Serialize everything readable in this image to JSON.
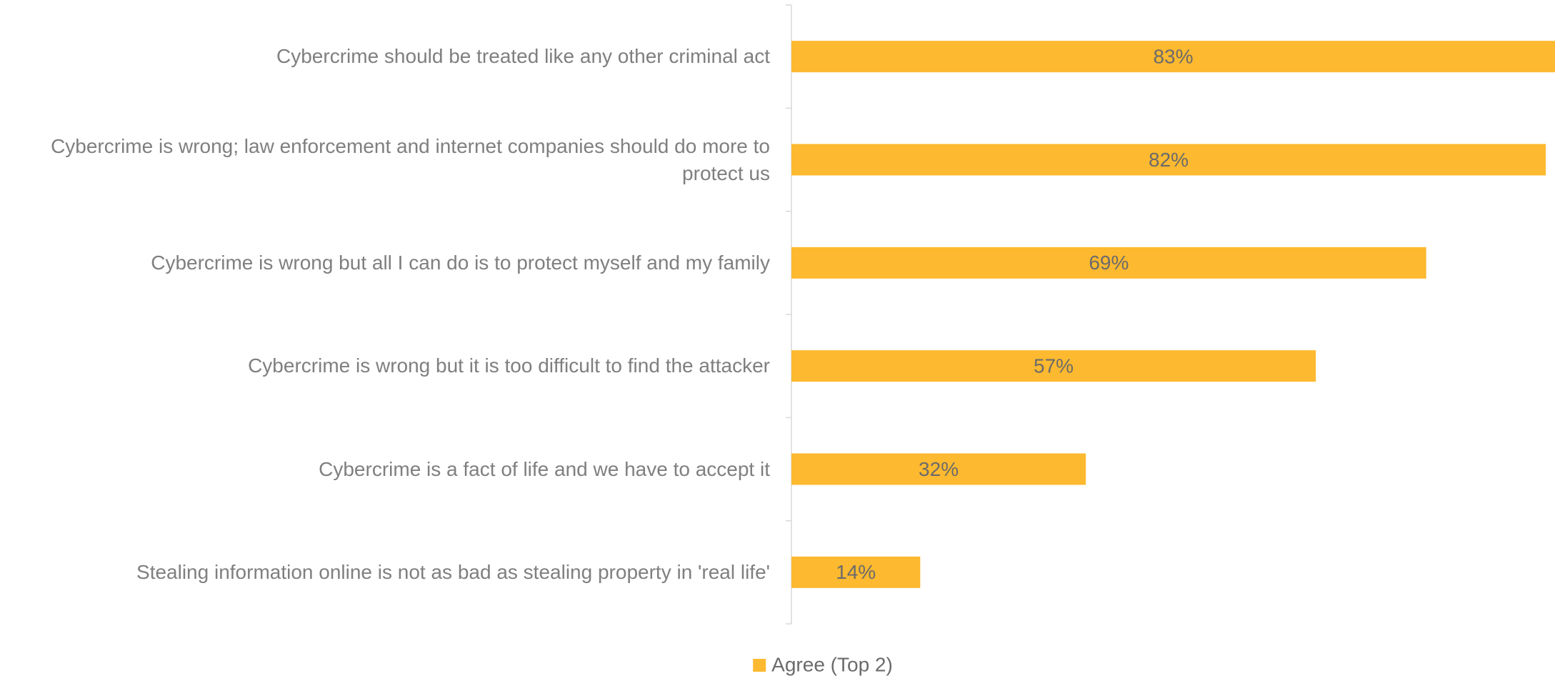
{
  "chart_data": {
    "type": "bar",
    "orientation": "horizontal",
    "categories": [
      "Cybercrime should be treated like any other criminal act",
      "Cybercrime is wrong; law enforcement and internet companies should do more to protect us",
      "Cybercrime is wrong but all I can do is to protect myself and my family",
      "Cybercrime is wrong but it is too difficult to find the attacker",
      "Cybercrime is a fact of life and we have to accept it",
      "Stealing information online is not as bad as stealing property in 'real life'"
    ],
    "series": [
      {
        "name": "Agree (Top 2)",
        "color": "#fdb92f",
        "values": [
          83,
          82,
          69,
          57,
          32,
          14
        ],
        "value_labels": [
          "83%",
          "82%",
          "69%",
          "57%",
          "32%",
          "14%"
        ]
      }
    ],
    "xlim": [
      0,
      83
    ],
    "legend": "bottom"
  }
}
